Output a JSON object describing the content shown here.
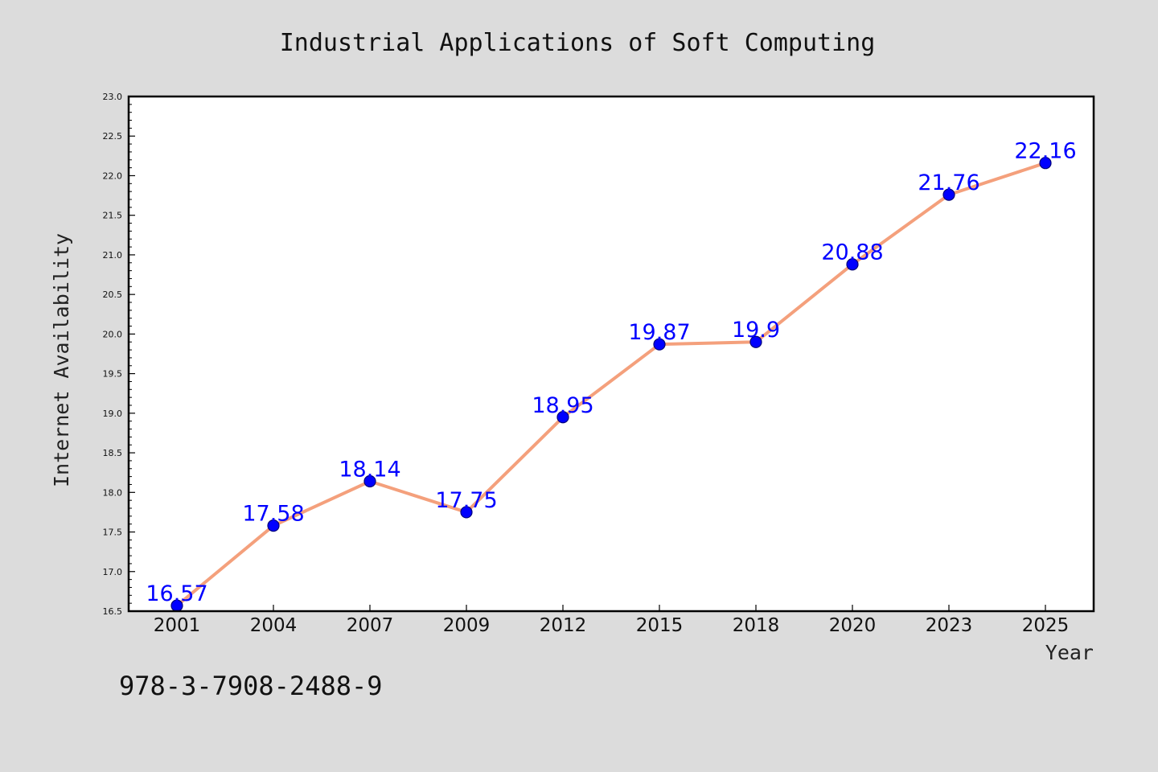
{
  "chart_data": {
    "type": "line",
    "title": "Industrial Applications of Soft Computing",
    "xlabel": "Year",
    "ylabel": "Internet Availability",
    "categories": [
      "2001",
      "2004",
      "2007",
      "2009",
      "2012",
      "2015",
      "2018",
      "2020",
      "2023",
      "2025"
    ],
    "series": [
      {
        "values": [
          16.57,
          17.58,
          18.14,
          17.75,
          18.95,
          19.87,
          19.9,
          20.88,
          21.76,
          22.16
        ],
        "data_labels": [
          "16.57",
          "17.58",
          "18.14",
          "17.75",
          "18.95",
          "19.87",
          "19.9",
          "20.88",
          "21.76",
          "22.16"
        ],
        "line_color": "#f4a07c",
        "marker_color": "#0000ff"
      }
    ],
    "ylim": [
      16.5,
      23.0
    ],
    "yticks": [
      "16.5",
      "17.0",
      "17.5",
      "18.0",
      "18.5",
      "19.0",
      "19.5",
      "20.0",
      "20.5",
      "21.0",
      "21.5",
      "22.0",
      "22.5",
      "23.0"
    ],
    "grid": false,
    "legend": "none",
    "background_color": "#dcdcdc",
    "plot_background": "#ffffff"
  },
  "footer": {
    "isbn": "978-3-7908-2488-9"
  }
}
